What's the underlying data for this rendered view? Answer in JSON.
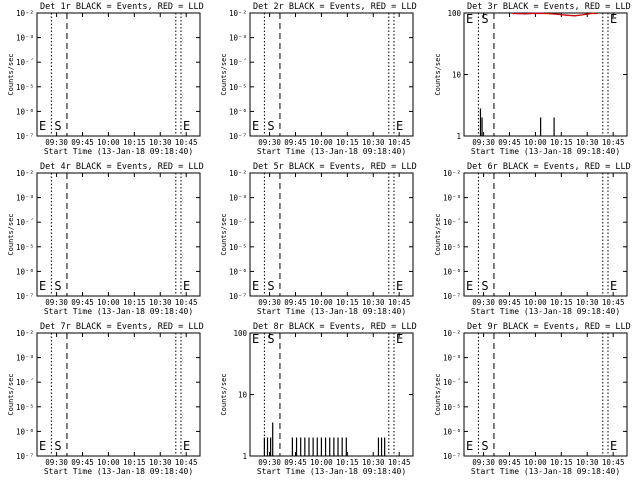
{
  "x_axis": {
    "ticks": [
      "09:30",
      "09:45",
      "10:00",
      "10:15",
      "10:30",
      "10:45"
    ],
    "label": "Start Time (13-Jan-18 09:18:40)"
  },
  "y_label": "Counts/sec",
  "marker_s": "S",
  "marker_e": "E",
  "colors": {
    "events": "#000000",
    "lld": "#cc0000"
  },
  "chart_data": [
    {
      "type": "line",
      "title": "Det 1r BLACK = Events, RED = LLD",
      "scale": "log",
      "yticks": [
        "10⁻²",
        "10⁻³",
        "10⁻´",
        "10⁻⁵",
        "10⁻⁶",
        "10⁻⁷"
      ],
      "ylabel": "Counts/sec",
      "events": [],
      "lld": []
    },
    {
      "type": "line",
      "title": "Det 2r BLACK = Events, RED = LLD",
      "scale": "log",
      "yticks": [
        "10⁻²",
        "10⁻³",
        "10⁻´",
        "10⁻⁵",
        "10⁻⁶",
        "10⁻⁷"
      ],
      "ylabel": "Counts/sec",
      "events": [],
      "lld": []
    },
    {
      "type": "line",
      "title": "Det 3r BLACK = Events, RED = LLD",
      "scale": "log",
      "yticks": [
        "100",
        "10",
        "1"
      ],
      "ylabel": "Counts/sec",
      "events": [
        [
          9.47,
          2.8
        ],
        [
          9.485,
          2.0
        ],
        [
          10.05,
          2.0
        ],
        [
          10.18,
          2.0
        ]
      ],
      "lld": [
        [
          9.78,
          98
        ],
        [
          9.9,
          97
        ],
        [
          10.0,
          99
        ],
        [
          10.1,
          98
        ],
        [
          10.2,
          96
        ],
        [
          10.3,
          92
        ],
        [
          10.38,
          90
        ],
        [
          10.45,
          93
        ],
        [
          10.55,
          99
        ],
        [
          10.6,
          98
        ]
      ]
    },
    {
      "type": "line",
      "title": "Det 4r BLACK = Events, RED = LLD",
      "scale": "log",
      "yticks": [
        "10⁻²",
        "10⁻³",
        "10⁻´",
        "10⁻⁵",
        "10⁻⁶",
        "10⁻⁷"
      ],
      "ylabel": "Counts/sec",
      "events": [],
      "lld": []
    },
    {
      "type": "line",
      "title": "Det 5r BLACK = Events, RED = LLD",
      "scale": "log",
      "yticks": [
        "10⁻²",
        "10⁻³",
        "10⁻´",
        "10⁻⁵",
        "10⁻⁶",
        "10⁻⁷"
      ],
      "ylabel": "Counts/sec",
      "events": [],
      "lld": []
    },
    {
      "type": "line",
      "title": "Det 6r BLACK = Events, RED = LLD",
      "scale": "log",
      "yticks": [
        "10⁻²",
        "10⁻³",
        "10⁻´",
        "10⁻⁵",
        "10⁻⁶",
        "10⁻⁷"
      ],
      "ylabel": "Counts/sec",
      "events": [],
      "lld": []
    },
    {
      "type": "line",
      "title": "Det 7r BLACK = Events, RED = LLD",
      "scale": "log",
      "yticks": [
        "10⁻²",
        "10⁻³",
        "10⁻´",
        "10⁻⁵",
        "10⁻⁶",
        "10⁻⁷"
      ],
      "ylabel": "Counts/sec",
      "events": [],
      "lld": []
    },
    {
      "type": "line",
      "title": "Det 8r BLACK = Events, RED = LLD",
      "scale": "log",
      "yticks": [
        "100",
        "10",
        "1"
      ],
      "ylabel": "Counts/sec",
      "events": [
        [
          9.45,
          2
        ],
        [
          9.48,
          2
        ],
        [
          9.51,
          2
        ],
        [
          9.53,
          3.5
        ],
        [
          9.72,
          2
        ],
        [
          9.76,
          2
        ],
        [
          9.8,
          2
        ],
        [
          9.84,
          2
        ],
        [
          9.88,
          2
        ],
        [
          9.92,
          2
        ],
        [
          9.96,
          2
        ],
        [
          10.0,
          2
        ],
        [
          10.04,
          2
        ],
        [
          10.08,
          2
        ],
        [
          10.12,
          2
        ],
        [
          10.16,
          2
        ],
        [
          10.2,
          2
        ],
        [
          10.24,
          2
        ],
        [
          10.55,
          2
        ],
        [
          10.58,
          2
        ],
        [
          10.61,
          2
        ]
      ],
      "lld": []
    },
    {
      "type": "line",
      "title": "Det 9r BLACK = Events, RED = LLD",
      "scale": "log",
      "yticks": [
        "10⁻²",
        "10⁻³",
        "10⁻´",
        "10⁻⁵",
        "10⁻⁶",
        "10⁻⁷"
      ],
      "ylabel": "Counts/sec",
      "events": [],
      "lld": []
    }
  ]
}
